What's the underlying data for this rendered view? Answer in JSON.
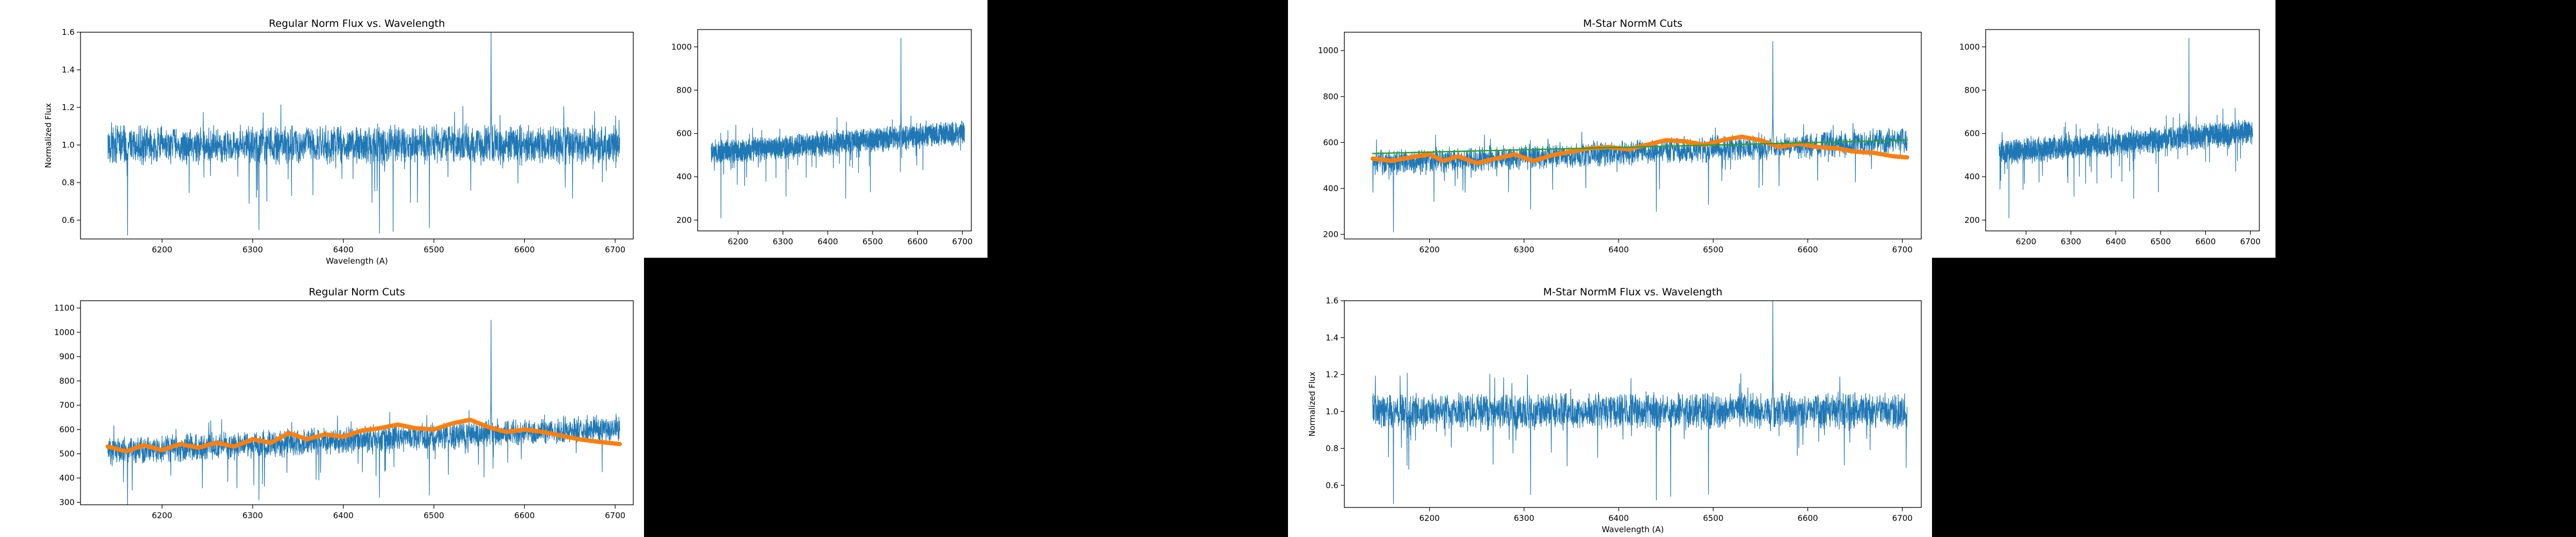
{
  "chart_data": [
    {
      "id": "reg-norm-flux",
      "type": "line",
      "title": "Regular Norm Flux vs. Wavelength",
      "xlabel": "Wavelength (A)",
      "ylabel": "Normalized Flux",
      "xlim": [
        6110,
        6720
      ],
      "ylim": [
        0.5,
        1.6
      ],
      "xticks": [
        6200,
        6300,
        6400,
        6500,
        6600,
        6700
      ],
      "yticks": [
        0.6,
        0.8,
        1.0,
        1.2,
        1.4,
        1.6
      ],
      "series": [
        {
          "color": "#1f77b4",
          "x_range": [
            6140,
            6705
          ],
          "baseline": 1.0,
          "slope": 0,
          "noise": 0.08,
          "peaks": [
            {
              "x": 6563,
              "y": 1.6
            }
          ],
          "dips": [
            {
              "x": 6162,
              "y": 0.52
            },
            {
              "x": 6307,
              "y": 0.55
            },
            {
              "x": 6440,
              "y": 0.53
            },
            {
              "x": 6495,
              "y": 0.56
            },
            {
              "x": 6455,
              "y": 0.54
            }
          ]
        }
      ]
    },
    {
      "id": "panel-2",
      "type": "line",
      "title": "",
      "xlabel": "",
      "ylabel": "",
      "xlim": [
        6110,
        6720
      ],
      "ylim": [
        150,
        1080
      ],
      "xticks": [
        6200,
        6300,
        6400,
        6500,
        6600,
        6700
      ],
      "yticks": [
        200,
        400,
        600,
        800,
        1000
      ],
      "series": [
        {
          "color": "#1f77b4",
          "x_range": [
            6140,
            6705
          ],
          "baseline": 510,
          "slope": 0.17,
          "noise": 45,
          "peaks": [
            {
              "x": 6563,
              "y": 1040
            }
          ],
          "dips": [
            {
              "x": 6162,
              "y": 210
            },
            {
              "x": 6307,
              "y": 310
            },
            {
              "x": 6440,
              "y": 300
            },
            {
              "x": 6495,
              "y": 330
            }
          ]
        }
      ]
    },
    {
      "id": "mstar-normm-cuts",
      "type": "line",
      "title": "M-Star NormM Cuts",
      "xlabel": "",
      "ylabel": "",
      "xlim": [
        6110,
        6720
      ],
      "ylim": [
        180,
        1080
      ],
      "xticks": [
        6200,
        6300,
        6400,
        6500,
        6600,
        6700
      ],
      "yticks": [
        200,
        400,
        600,
        800,
        1000
      ],
      "series": [
        {
          "color": "#1f77b4",
          "x_range": [
            6140,
            6705
          ],
          "baseline": 510,
          "slope": 0.17,
          "noise": 45,
          "peaks": [
            {
              "x": 6563,
              "y": 1040
            }
          ],
          "dips": [
            {
              "x": 6162,
              "y": 210
            },
            {
              "x": 6307,
              "y": 310
            },
            {
              "x": 6440,
              "y": 300
            },
            {
              "x": 6495,
              "y": 330
            }
          ]
        },
        {
          "color": "#ff7f0e",
          "x": [
            6140,
            6160,
            6180,
            6200,
            6215,
            6230,
            6250,
            6270,
            6290,
            6310,
            6330,
            6350,
            6370,
            6390,
            6410,
            6430,
            6450,
            6470,
            6490,
            6510,
            6530,
            6550,
            6570,
            6590,
            6610,
            6630,
            6650,
            6670,
            6690,
            6705
          ],
          "y": [
            530,
            520,
            535,
            548,
            520,
            540,
            510,
            530,
            548,
            520,
            545,
            560,
            575,
            580,
            570,
            590,
            610,
            605,
            590,
            610,
            625,
            610,
            580,
            595,
            580,
            575,
            560,
            555,
            540,
            535
          ]
        },
        {
          "color": "#2ca02c",
          "x": [
            6140,
            6705
          ],
          "y": [
            552,
            610
          ]
        }
      ]
    },
    {
      "id": "panel-4",
      "type": "line",
      "title": "",
      "xlabel": "",
      "ylabel": "",
      "xlim": [
        6110,
        6720
      ],
      "ylim": [
        150,
        1080
      ],
      "xticks": [
        6200,
        6300,
        6400,
        6500,
        6600,
        6700
      ],
      "yticks": [
        200,
        400,
        600,
        800,
        1000
      ],
      "series": [
        {
          "color": "#1f77b4",
          "x_range": [
            6140,
            6705
          ],
          "baseline": 510,
          "slope": 0.17,
          "noise": 45,
          "peaks": [
            {
              "x": 6563,
              "y": 1040
            }
          ],
          "dips": [
            {
              "x": 6162,
              "y": 210
            },
            {
              "x": 6307,
              "y": 310
            },
            {
              "x": 6440,
              "y": 300
            },
            {
              "x": 6495,
              "y": 330
            }
          ]
        }
      ]
    },
    {
      "id": "reg-norm-cuts",
      "type": "line",
      "title": "Regular Norm Cuts",
      "xlabel": "",
      "ylabel": "",
      "xlim": [
        6110,
        6720
      ],
      "ylim": [
        290,
        1130
      ],
      "xticks": [
        6200,
        6300,
        6400,
        6500,
        6600,
        6700
      ],
      "yticks": [
        300,
        400,
        500,
        600,
        700,
        800,
        900,
        1000,
        1100
      ],
      "series": [
        {
          "color": "#1f77b4",
          "x_range": [
            6140,
            6705
          ],
          "baseline": 510,
          "slope": 0.17,
          "noise": 45,
          "peaks": [
            {
              "x": 6563,
              "y": 1050
            }
          ],
          "dips": [
            {
              "x": 6162,
              "y": 280
            },
            {
              "x": 6307,
              "y": 310
            },
            {
              "x": 6440,
              "y": 320
            },
            {
              "x": 6495,
              "y": 330
            }
          ]
        },
        {
          "color": "#ff7f0e",
          "x": [
            6140,
            6160,
            6180,
            6200,
            6220,
            6240,
            6260,
            6280,
            6300,
            6320,
            6340,
            6360,
            6380,
            6400,
            6420,
            6440,
            6460,
            6480,
            6500,
            6520,
            6540,
            6560,
            6580,
            6600,
            6620,
            6640,
            6660,
            6680,
            6705
          ],
          "y": [
            530,
            510,
            535,
            515,
            540,
            525,
            545,
            530,
            560,
            545,
            585,
            560,
            580,
            570,
            595,
            605,
            620,
            605,
            600,
            625,
            640,
            610,
            590,
            600,
            590,
            575,
            560,
            550,
            540
          ]
        }
      ]
    },
    {
      "id": "mstar-normm-flux",
      "type": "line",
      "title": "M-Star NormM Flux vs. Wavelength",
      "xlabel": "Wavelength (A)",
      "ylabel": "Normalized Flux",
      "xlim": [
        6110,
        6720
      ],
      "ylim": [
        0.48,
        1.6
      ],
      "xticks": [
        6200,
        6300,
        6400,
        6500,
        6600,
        6700
      ],
      "yticks": [
        0.6,
        0.8,
        1.0,
        1.2,
        1.4,
        1.6
      ],
      "series": [
        {
          "color": "#1f77b4",
          "x_range": [
            6140,
            6705
          ],
          "baseline": 1.0,
          "slope": 0,
          "noise": 0.08,
          "peaks": [
            {
              "x": 6563,
              "y": 1.6
            }
          ],
          "dips": [
            {
              "x": 6162,
              "y": 0.5
            },
            {
              "x": 6307,
              "y": 0.55
            },
            {
              "x": 6440,
              "y": 0.52
            },
            {
              "x": 6495,
              "y": 0.55
            },
            {
              "x": 6455,
              "y": 0.54
            }
          ]
        }
      ]
    }
  ]
}
